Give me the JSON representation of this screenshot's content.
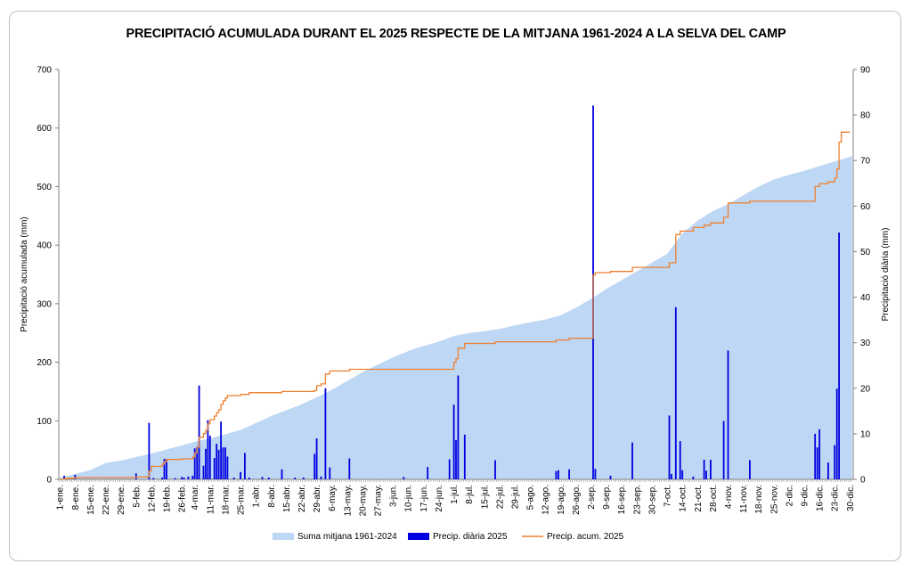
{
  "chart_data": {
    "type": "bar",
    "title": "PRECIPITACIÓ ACUMULADA DURANT EL 2025 RESPECTE DE LA MITJANA 1961-2024 A LA SELVA DEL CAMP",
    "ylabel_left": "Precipitació acumulada (mm)",
    "ylabel_right": "Precipitació diària (mm)",
    "ylim_left": [
      0,
      700
    ],
    "ylim_right": [
      0,
      90
    ],
    "yticks_left": [
      "0",
      "100",
      "200",
      "300",
      "400",
      "500",
      "600",
      "700"
    ],
    "yticks_right": [
      "0",
      "10",
      "20",
      "30",
      "40",
      "50",
      "60",
      "70",
      "80",
      "90"
    ],
    "xticks": [
      {
        "day": 1,
        "label": "1-ene."
      },
      {
        "day": 8,
        "label": "8-ene."
      },
      {
        "day": 15,
        "label": "15-ene."
      },
      {
        "day": 22,
        "label": "22-ene."
      },
      {
        "day": 29,
        "label": "29-ene."
      },
      {
        "day": 36,
        "label": "5-feb."
      },
      {
        "day": 43,
        "label": "12-feb."
      },
      {
        "day": 50,
        "label": "19-feb."
      },
      {
        "day": 57,
        "label": "26-feb."
      },
      {
        "day": 63,
        "label": "4-mar."
      },
      {
        "day": 70,
        "label": "11-mar."
      },
      {
        "day": 77,
        "label": "18-mar."
      },
      {
        "day": 84,
        "label": "25-mar."
      },
      {
        "day": 91,
        "label": "1-abr."
      },
      {
        "day": 98,
        "label": "8-abr."
      },
      {
        "day": 105,
        "label": "15-abr."
      },
      {
        "day": 112,
        "label": "22-abr."
      },
      {
        "day": 119,
        "label": "29-abr."
      },
      {
        "day": 126,
        "label": "6-may."
      },
      {
        "day": 133,
        "label": "13-may."
      },
      {
        "day": 140,
        "label": "20-may."
      },
      {
        "day": 147,
        "label": "27-may."
      },
      {
        "day": 154,
        "label": "3-jun."
      },
      {
        "day": 161,
        "label": "10-jun."
      },
      {
        "day": 168,
        "label": "17-jun."
      },
      {
        "day": 175,
        "label": "24-jun."
      },
      {
        "day": 182,
        "label": "1-jul."
      },
      {
        "day": 189,
        "label": "8-jul."
      },
      {
        "day": 196,
        "label": "15-jul."
      },
      {
        "day": 203,
        "label": "22-jul."
      },
      {
        "day": 210,
        "label": "29-jul."
      },
      {
        "day": 217,
        "label": "5-ago."
      },
      {
        "day": 224,
        "label": "12-ago."
      },
      {
        "day": 231,
        "label": "19-ago."
      },
      {
        "day": 238,
        "label": "26-ago."
      },
      {
        "day": 245,
        "label": "2-sep."
      },
      {
        "day": 252,
        "label": "9-sep."
      },
      {
        "day": 259,
        "label": "16-sep."
      },
      {
        "day": 266,
        "label": "23-sep."
      },
      {
        "day": 273,
        "label": "30-sep."
      },
      {
        "day": 280,
        "label": "7-oct."
      },
      {
        "day": 287,
        "label": "14-oct."
      },
      {
        "day": 294,
        "label": "21-oct."
      },
      {
        "day": 301,
        "label": "28-oct."
      },
      {
        "day": 308,
        "label": "4-nov."
      },
      {
        "day": 315,
        "label": "11-nov."
      },
      {
        "day": 322,
        "label": "18-nov."
      },
      {
        "day": 329,
        "label": "25-nov."
      },
      {
        "day": 336,
        "label": "2-dic."
      },
      {
        "day": 343,
        "label": "9-dic."
      },
      {
        "day": 350,
        "label": "16-dic."
      },
      {
        "day": 357,
        "label": "23-dic."
      },
      {
        "day": 364,
        "label": "30-dic."
      }
    ],
    "series": [
      {
        "name": "Suma mitjana 1961-2024",
        "type": "area",
        "axis": "left",
        "color": "#bdd7f5",
        "points": [
          [
            1,
            3
          ],
          [
            8,
            9
          ],
          [
            15,
            16
          ],
          [
            22,
            28
          ],
          [
            29,
            32
          ],
          [
            36,
            38
          ],
          [
            43,
            44
          ],
          [
            50,
            51
          ],
          [
            57,
            58
          ],
          [
            63,
            64
          ],
          [
            70,
            70
          ],
          [
            77,
            77
          ],
          [
            84,
            84
          ],
          [
            91,
            96
          ],
          [
            98,
            108
          ],
          [
            105,
            118
          ],
          [
            112,
            128
          ],
          [
            119,
            140
          ],
          [
            126,
            153
          ],
          [
            133,
            168
          ],
          [
            140,
            183
          ],
          [
            147,
            196
          ],
          [
            154,
            208
          ],
          [
            161,
            219
          ],
          [
            168,
            228
          ],
          [
            175,
            235
          ],
          [
            182,
            245
          ],
          [
            189,
            250
          ],
          [
            196,
            253
          ],
          [
            203,
            257
          ],
          [
            210,
            263
          ],
          [
            217,
            268
          ],
          [
            224,
            273
          ],
          [
            231,
            280
          ],
          [
            238,
            293
          ],
          [
            245,
            308
          ],
          [
            252,
            325
          ],
          [
            259,
            340
          ],
          [
            266,
            355
          ],
          [
            273,
            370
          ],
          [
            280,
            385
          ],
          [
            287,
            420
          ],
          [
            294,
            442
          ],
          [
            301,
            458
          ],
          [
            308,
            470
          ],
          [
            315,
            485
          ],
          [
            322,
            500
          ],
          [
            329,
            512
          ],
          [
            336,
            520
          ],
          [
            343,
            527
          ],
          [
            350,
            535
          ],
          [
            357,
            543
          ],
          [
            365,
            552
          ]
        ]
      },
      {
        "name": "Precip. diària 2025",
        "type": "bar",
        "axis": "right",
        "color": "#0000e0",
        "points": [
          [
            3,
            0.8
          ],
          [
            8,
            1
          ],
          [
            36,
            1.3
          ],
          [
            42,
            12.4
          ],
          [
            44,
            0.3
          ],
          [
            48,
            0.4
          ],
          [
            49,
            4.5
          ],
          [
            50,
            4.5
          ],
          [
            54,
            0.3
          ],
          [
            57,
            0.5
          ],
          [
            58,
            0.4
          ],
          [
            60,
            0.6
          ],
          [
            62,
            0.8
          ],
          [
            63,
            6.8
          ],
          [
            64,
            7.2
          ],
          [
            65,
            20.6
          ],
          [
            67,
            3
          ],
          [
            68,
            6.7
          ],
          [
            69,
            13
          ],
          [
            70,
            9.6
          ],
          [
            72,
            4.7
          ],
          [
            73,
            7.8
          ],
          [
            74,
            6.5
          ],
          [
            75,
            12.7
          ],
          [
            76,
            7
          ],
          [
            77,
            7
          ],
          [
            78,
            5
          ],
          [
            81,
            0.4
          ],
          [
            84,
            1.6
          ],
          [
            86,
            5.8
          ],
          [
            88,
            0.4
          ],
          [
            94,
            0.5
          ],
          [
            97,
            0.4
          ],
          [
            103,
            2.2
          ],
          [
            109,
            0.4
          ],
          [
            113,
            0.4
          ],
          [
            118,
            5.6
          ],
          [
            119,
            9
          ],
          [
            121,
            0.6
          ],
          [
            123,
            20
          ],
          [
            125,
            2.6
          ],
          [
            134,
            4.6
          ],
          [
            159,
            0.5
          ],
          [
            170,
            2.7
          ],
          [
            180,
            4.4
          ],
          [
            182,
            16.4
          ],
          [
            183,
            8.6
          ],
          [
            184,
            22.8
          ],
          [
            187,
            9.8
          ],
          [
            201,
            4.2
          ],
          [
            229,
            1.8
          ],
          [
            230,
            2
          ],
          [
            235,
            2.2
          ],
          [
            246,
            82.1
          ],
          [
            247,
            2.3
          ],
          [
            254,
            0.8
          ],
          [
            264,
            8.1
          ],
          [
            281,
            14
          ],
          [
            282,
            1.2
          ],
          [
            284,
            37.8
          ],
          [
            286,
            8.4
          ],
          [
            287,
            2
          ],
          [
            292,
            0.6
          ],
          [
            297,
            4.3
          ],
          [
            298,
            1.9
          ],
          [
            300,
            4.3
          ],
          [
            306,
            12.8
          ],
          [
            308,
            28.3
          ],
          [
            318,
            4.2
          ],
          [
            348,
            10
          ],
          [
            349,
            7
          ],
          [
            350,
            11
          ],
          [
            354,
            3.7
          ],
          [
            357,
            7.5
          ],
          [
            358,
            19.9
          ],
          [
            359,
            54.2
          ]
        ]
      },
      {
        "name": "Precip. acum. 2025",
        "type": "step",
        "axis": "left",
        "color": "#f08030",
        "points": [
          [
            1,
            0
          ],
          [
            3,
            1
          ],
          [
            4,
            2
          ],
          [
            8,
            3
          ],
          [
            36,
            4
          ],
          [
            42,
            14
          ],
          [
            43,
            22
          ],
          [
            48,
            26
          ],
          [
            49,
            30
          ],
          [
            50,
            34
          ],
          [
            57,
            35
          ],
          [
            62,
            38
          ],
          [
            63,
            45
          ],
          [
            64,
            55
          ],
          [
            65,
            72
          ],
          [
            67,
            78
          ],
          [
            68,
            84
          ],
          [
            69,
            95
          ],
          [
            70,
            102
          ],
          [
            72,
            108
          ],
          [
            73,
            114
          ],
          [
            74,
            119
          ],
          [
            75,
            128
          ],
          [
            76,
            134
          ],
          [
            77,
            139
          ],
          [
            78,
            143
          ],
          [
            84,
            145
          ],
          [
            88,
            148
          ],
          [
            103,
            150
          ],
          [
            118,
            152
          ],
          [
            119,
            160
          ],
          [
            121,
            163
          ],
          [
            123,
            180
          ],
          [
            125,
            185
          ],
          [
            134,
            188
          ],
          [
            182,
            200
          ],
          [
            183,
            206
          ],
          [
            184,
            224
          ],
          [
            187,
            232
          ],
          [
            201,
            235
          ],
          [
            229,
            238
          ],
          [
            235,
            241
          ],
          [
            246,
            349
          ],
          [
            247,
            353
          ],
          [
            254,
            355
          ],
          [
            264,
            362
          ],
          [
            281,
            370
          ],
          [
            284,
            418
          ],
          [
            286,
            424
          ],
          [
            292,
            430
          ],
          [
            297,
            434
          ],
          [
            300,
            438
          ],
          [
            306,
            448
          ],
          [
            308,
            472
          ],
          [
            318,
            475
          ],
          [
            348,
            500
          ],
          [
            350,
            505
          ],
          [
            354,
            508
          ],
          [
            357,
            515
          ],
          [
            358,
            530
          ],
          [
            359,
            576
          ],
          [
            360,
            593
          ],
          [
            364,
            593
          ]
        ]
      }
    ]
  }
}
